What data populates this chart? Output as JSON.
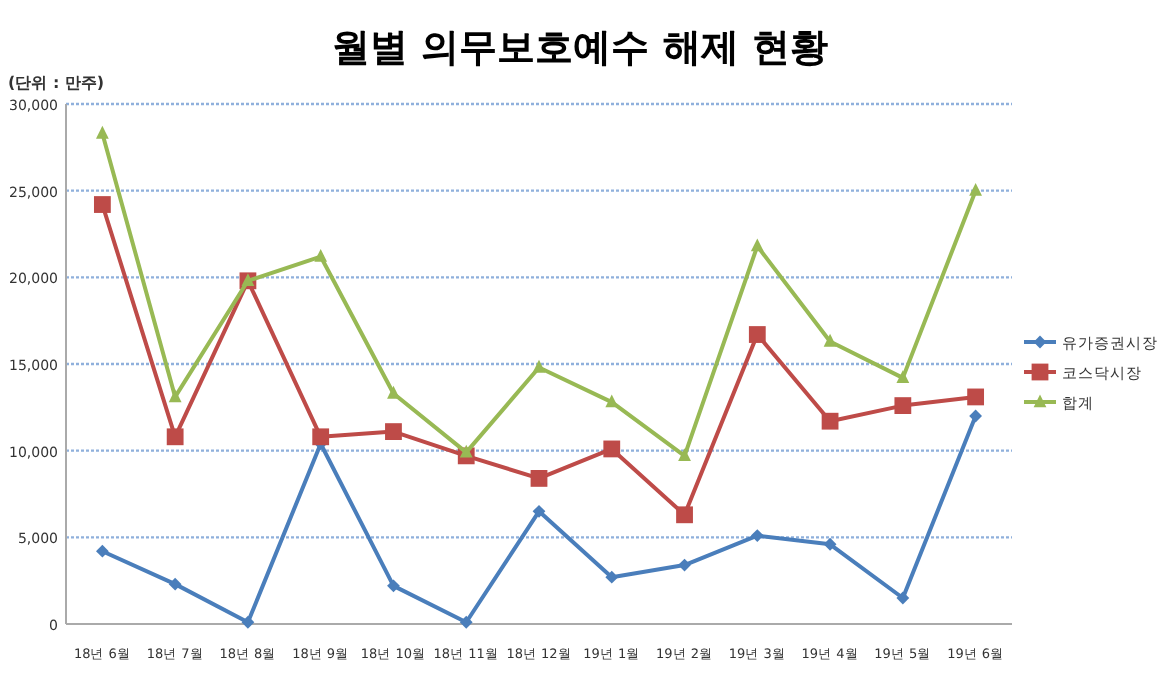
{
  "chart_data": {
    "type": "line",
    "title": "월별 의무보호예수 해제 현황",
    "ylabel": "(단위 : 만주)",
    "categories": [
      "18년 6월",
      "18년 7월",
      "18년 8월",
      "18년 9월",
      "18년 10월",
      "18년 11월",
      "18년 12월",
      "19년 1월",
      "19년 2월",
      "19년 3월",
      "19년 4월",
      "19년 5월",
      "19년 6월"
    ],
    "series": [
      {
        "name": "유가증권시장",
        "color": "#4a7ebb",
        "marker": "diamond",
        "values": [
          4200,
          2300,
          100,
          10400,
          2200,
          100,
          6500,
          2700,
          3400,
          5100,
          4600,
          1500,
          12000
        ]
      },
      {
        "name": "코스닥시장",
        "color": "#be4b48",
        "marker": "square",
        "values": [
          24200,
          10800,
          19800,
          10800,
          11100,
          9700,
          8400,
          10100,
          6300,
          16700,
          11700,
          12600,
          13100
        ]
      },
      {
        "name": "합계",
        "color": "#98b954",
        "marker": "triangle",
        "values": [
          28300,
          13100,
          19800,
          21200,
          13300,
          9900,
          14800,
          12800,
          9700,
          21800,
          16300,
          14200,
          25000
        ]
      }
    ],
    "ylim": [
      0,
      30000
    ],
    "yticks": [
      0,
      {
        "value": 5000,
        "label": "5,000"
      },
      {
        "value": 10000,
        "label": "10,000"
      },
      {
        "value": 15000,
        "label": "15,000"
      },
      {
        "value": 20000,
        "label": "20,000"
      },
      {
        "value": 25000,
        "label": "25,000"
      },
      {
        "value": 30000,
        "label": "30,000"
      }
    ],
    "grid": "y",
    "legend": "right",
    "line_style": "solid"
  }
}
